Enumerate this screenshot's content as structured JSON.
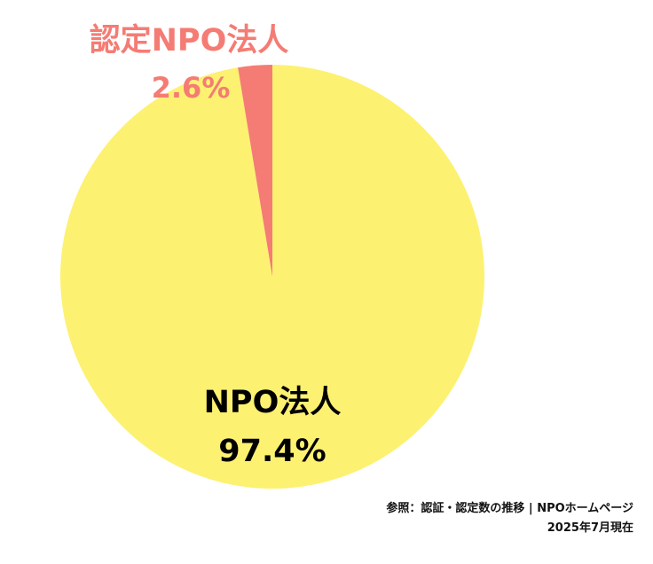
{
  "chart_data": {
    "type": "pie",
    "categories": [
      "NPO法人",
      "認定NPO法人"
    ],
    "values": [
      97.4,
      2.6
    ],
    "value_labels": [
      "97.4%",
      "2.6%"
    ],
    "colors": [
      "#FDF171",
      "#F47C74"
    ],
    "label_colors": [
      "#000000",
      "#F47C74"
    ],
    "start": "12 o'clock",
    "direction": "counterclockwise for 認定NPO法人 slice, remainder NPO法人",
    "legend": "none (labels placed directly on/near slices)"
  },
  "source": {
    "line1": "参照：認証・認定数の推移 | NPOホームページ",
    "line2": "2025年7月現在"
  }
}
